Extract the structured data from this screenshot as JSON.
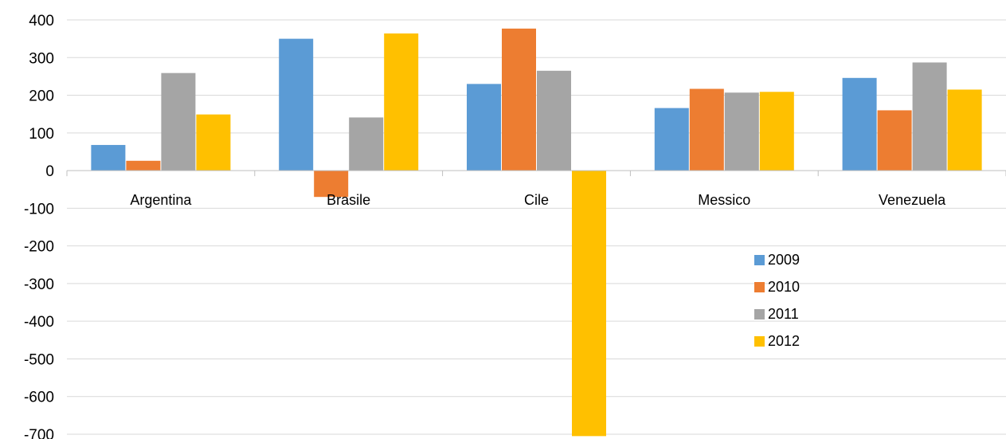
{
  "chart_data": {
    "type": "bar",
    "title": "",
    "xlabel": "",
    "ylabel": "",
    "categories": [
      "Argentina",
      "Brasile",
      "Cile",
      "Messico",
      "Venezuela"
    ],
    "series": [
      {
        "name": "2009",
        "color": "#5B9BD5",
        "values": [
          68,
          350,
          230,
          166,
          246
        ]
      },
      {
        "name": "2010",
        "color": "#ED7D31",
        "values": [
          26,
          -70,
          377,
          217,
          160
        ]
      },
      {
        "name": "2011",
        "color": "#A5A5A5",
        "values": [
          259,
          141,
          265,
          207,
          287
        ]
      },
      {
        "name": "2012",
        "color": "#FFC000",
        "values": [
          149,
          364,
          -705,
          209,
          215
        ]
      }
    ],
    "ylim": [
      -700,
      400
    ],
    "yticks": [
      400,
      300,
      200,
      100,
      0,
      -100,
      -200,
      -300,
      -400,
      -500,
      -600,
      -700
    ],
    "grid": true,
    "legend_position": "right-center"
  }
}
